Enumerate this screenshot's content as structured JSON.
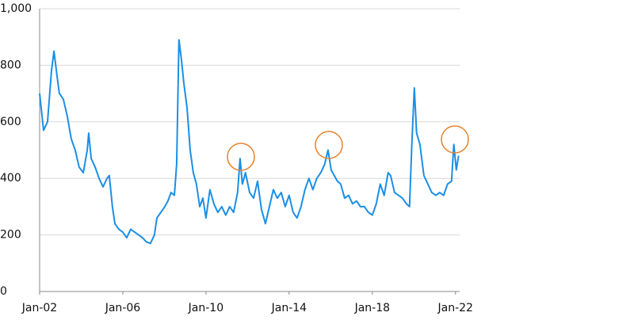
{
  "chart_data": {
    "type": "line",
    "x": [
      2002.0,
      2002.19,
      2002.38,
      2002.57,
      2002.69,
      2002.84,
      2002.95,
      2003.14,
      2003.33,
      2003.52,
      2003.71,
      2003.9,
      2004.1,
      2004.29,
      2004.36,
      2004.48,
      2004.67,
      2004.86,
      2005.05,
      2005.24,
      2005.35,
      2005.5,
      2005.62,
      2005.81,
      2006.0,
      2006.19,
      2006.38,
      2006.57,
      2006.76,
      2006.95,
      2007.14,
      2007.33,
      2007.52,
      2007.64,
      2007.83,
      2008.02,
      2008.17,
      2008.32,
      2008.48,
      2008.59,
      2008.7,
      2008.82,
      2008.93,
      2009.09,
      2009.24,
      2009.39,
      2009.54,
      2009.7,
      2009.85,
      2010.0,
      2010.19,
      2010.38,
      2010.57,
      2010.76,
      2010.95,
      2011.14,
      2011.33,
      2011.52,
      2011.64,
      2011.75,
      2011.9,
      2012.1,
      2012.29,
      2012.48,
      2012.67,
      2012.86,
      2013.05,
      2013.24,
      2013.43,
      2013.62,
      2013.81,
      2014.0,
      2014.19,
      2014.38,
      2014.57,
      2014.76,
      2014.95,
      2015.14,
      2015.33,
      2015.52,
      2015.71,
      2015.87,
      2016.02,
      2016.17,
      2016.32,
      2016.48,
      2016.67,
      2016.86,
      2017.05,
      2017.24,
      2017.43,
      2017.62,
      2017.81,
      2018.0,
      2018.19,
      2018.38,
      2018.57,
      2018.76,
      2018.88,
      2019.07,
      2019.26,
      2019.45,
      2019.64,
      2019.79,
      2019.9,
      2020.02,
      2020.13,
      2020.29,
      2020.48,
      2020.67,
      2020.86,
      2021.05,
      2021.24,
      2021.43,
      2021.62,
      2021.81,
      2021.92,
      2022.04,
      2022.15
    ],
    "series": [
      {
        "color": "#1b8fe6",
        "values": [
          700,
          570,
          600,
          780,
          850,
          760,
          700,
          680,
          620,
          540,
          500,
          440,
          420,
          500,
          560,
          470,
          440,
          400,
          370,
          400,
          410,
          300,
          240,
          220,
          210,
          190,
          220,
          210,
          200,
          190,
          175,
          170,
          200,
          260,
          280,
          300,
          320,
          350,
          340,
          450,
          890,
          820,
          740,
          650,
          500,
          420,
          380,
          300,
          330,
          260,
          360,
          310,
          280,
          300,
          270,
          300,
          280,
          350,
          470,
          380,
          420,
          350,
          330,
          390,
          290,
          240,
          300,
          360,
          330,
          350,
          300,
          340,
          280,
          260,
          300,
          360,
          400,
          360,
          400,
          420,
          450,
          500,
          430,
          410,
          390,
          380,
          330,
          340,
          310,
          320,
          300,
          300,
          280,
          270,
          310,
          380,
          340,
          420,
          410,
          350,
          340,
          330,
          310,
          300,
          520,
          720,
          560,
          520,
          410,
          380,
          350,
          340,
          350,
          340,
          380,
          390,
          520,
          430,
          480
        ]
      }
    ],
    "xlim": [
      2002,
      2022.2
    ],
    "xticks": [
      {
        "value": 2002,
        "label": "Jan-02"
      },
      {
        "value": 2006,
        "label": "Jan-06"
      },
      {
        "value": 2010,
        "label": "Jan-10"
      },
      {
        "value": 2014,
        "label": "Jan-14"
      },
      {
        "value": 2018,
        "label": "Jan-18"
      },
      {
        "value": 2022,
        "label": "Jan-22"
      }
    ],
    "ylim": [
      0,
      1000
    ],
    "yticks": [
      0,
      200,
      400,
      600,
      800,
      {
        "value": 1000,
        "label": "1,000"
      }
    ],
    "grid": true
  }
}
